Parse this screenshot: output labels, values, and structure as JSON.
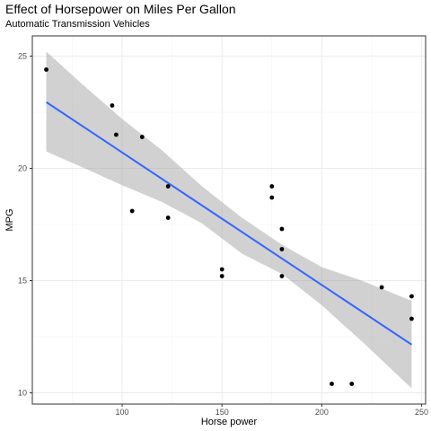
{
  "chart_data": {
    "type": "scatter",
    "title": "Effect of Horsepower on Miles Per Gallon",
    "subtitle": "Automatic Transmission Vehicles",
    "xlabel": "Horse power",
    "ylabel": "MPG",
    "xlim": [
      55,
      252
    ],
    "ylim": [
      9.5,
      25.9
    ],
    "xticks": [
      100,
      150,
      200,
      250
    ],
    "yticks": [
      10,
      15,
      20,
      25
    ],
    "grid": true,
    "colors": {
      "points": "#000000",
      "fit_line": "#3366FF",
      "ribbon": "#999999",
      "panel_border": "#333333",
      "grid_major": "#ebebeb"
    },
    "points": [
      {
        "x": 62,
        "y": 24.4
      },
      {
        "x": 95,
        "y": 22.8
      },
      {
        "x": 97,
        "y": 21.5
      },
      {
        "x": 110,
        "y": 21.4
      },
      {
        "x": 105,
        "y": 18.1
      },
      {
        "x": 123,
        "y": 19.2
      },
      {
        "x": 123,
        "y": 17.8
      },
      {
        "x": 150,
        "y": 15.5
      },
      {
        "x": 150,
        "y": 15.2
      },
      {
        "x": 175,
        "y": 19.2
      },
      {
        "x": 175,
        "y": 18.7
      },
      {
        "x": 180,
        "y": 17.3
      },
      {
        "x": 180,
        "y": 16.4
      },
      {
        "x": 180,
        "y": 15.2
      },
      {
        "x": 205,
        "y": 10.4
      },
      {
        "x": 215,
        "y": 10.4
      },
      {
        "x": 230,
        "y": 14.7
      },
      {
        "x": 245,
        "y": 14.3
      },
      {
        "x": 245,
        "y": 13.3
      }
    ],
    "fit_line": [
      {
        "x": 62,
        "y": 22.95
      },
      {
        "x": 245,
        "y": 12.15
      }
    ],
    "confidence_band": {
      "x": [
        62,
        80,
        100,
        120,
        140,
        160,
        180,
        200,
        220,
        245
      ],
      "upper": [
        25.2,
        23.75,
        22.2,
        20.8,
        19.2,
        17.8,
        16.6,
        15.6,
        15.0,
        14.1
      ],
      "lower": [
        20.75,
        20.05,
        19.25,
        18.5,
        17.55,
        16.2,
        15.3,
        13.9,
        12.3,
        10.2
      ]
    }
  }
}
